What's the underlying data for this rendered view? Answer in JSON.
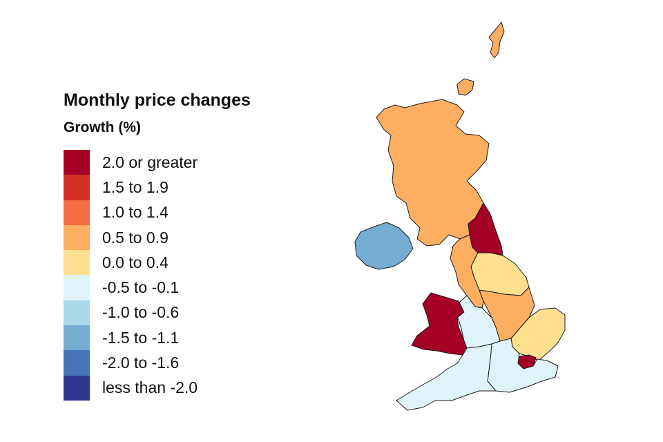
{
  "legend": {
    "title": "Monthly price changes",
    "subtitle": "Growth (%)",
    "items": [
      {
        "label": "2.0 or greater",
        "color": "#a50026"
      },
      {
        "label": "1.5 to 1.9",
        "color": "#d73027"
      },
      {
        "label": "1.0 to 1.4",
        "color": "#f46d43"
      },
      {
        "label": "0.5 to 0.9",
        "color": "#fdae61"
      },
      {
        "label": "0.0 to 0.4",
        "color": "#fee090"
      },
      {
        "label": "-0.5 to -0.1",
        "color": "#e0f3f8"
      },
      {
        "label": "-1.0 to -0.6",
        "color": "#abd9e9"
      },
      {
        "label": "-1.5 to -1.1",
        "color": "#74add1"
      },
      {
        "label": "-2.0 to -1.6",
        "color": "#4575b4"
      },
      {
        "label": "less than -2.0",
        "color": "#313695"
      }
    ]
  },
  "map": {
    "regions": [
      {
        "id": "scotland",
        "band": "0.5 to 0.9",
        "color": "#fdae61"
      },
      {
        "id": "north-east",
        "band": "2.0 or greater",
        "color": "#a50026"
      },
      {
        "id": "north-west",
        "band": "0.5 to 0.9",
        "color": "#fdae61"
      },
      {
        "id": "yorkshire-and-the-humber",
        "band": "0.0 to 0.4",
        "color": "#fee090"
      },
      {
        "id": "east-midlands",
        "band": "0.5 to 0.9",
        "color": "#fdae61"
      },
      {
        "id": "west-midlands",
        "band": "-0.5 to -0.1",
        "color": "#e0f3f8"
      },
      {
        "id": "east-of-england",
        "band": "0.0 to 0.4",
        "color": "#fee090"
      },
      {
        "id": "london",
        "band": "2.0 or greater",
        "color": "#a50026"
      },
      {
        "id": "south-east",
        "band": "-0.5 to -0.1",
        "color": "#e0f3f8"
      },
      {
        "id": "south-west",
        "band": "-0.5 to -0.1",
        "color": "#e0f3f8"
      },
      {
        "id": "wales",
        "band": "2.0 or greater",
        "color": "#a50026"
      },
      {
        "id": "northern-ireland",
        "band": "-1.5 to -1.1",
        "color": "#74add1"
      },
      {
        "id": "shetland",
        "band": "0.5 to 0.9",
        "color": "#fdae61"
      },
      {
        "id": "orkney",
        "band": "0.5 to 0.9",
        "color": "#fdae61"
      }
    ]
  }
}
